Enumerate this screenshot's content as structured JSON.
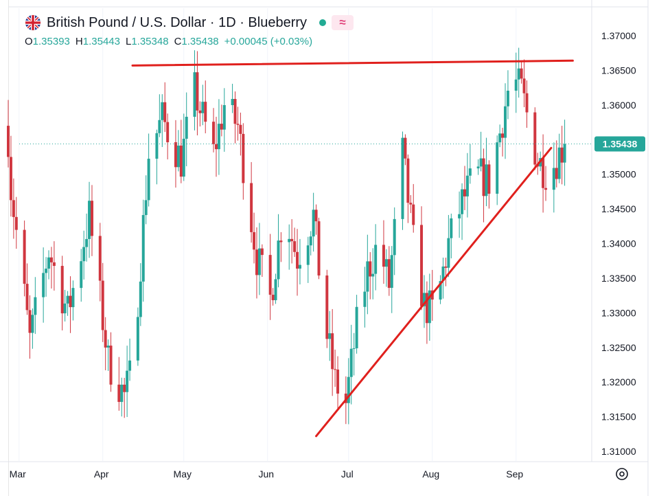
{
  "header": {
    "title": "British Pound / U.S. Dollar · 1D · Blueberry",
    "icons": [
      "uk-us-flag-icon",
      "status-dot-icon",
      "wave-icon"
    ],
    "wave_glyph": "≈"
  },
  "ohlc": {
    "o_label": "O",
    "o_value": "1.35393",
    "h_label": "H",
    "h_value": "1.35443",
    "l_label": "L",
    "l_value": "1.35348",
    "c_label": "C",
    "c_value": "1.35438",
    "change": "+0.00045 (+0.03%)"
  },
  "colors": {
    "up": "#26a69a",
    "down": "#d0363f",
    "trendline": "#e0201d",
    "price_tag": "#26a69a"
  },
  "chart_data": {
    "type": "candlestick",
    "ylim": [
      1.31,
      1.37
    ],
    "y_ticks": [
      "1.37000",
      "1.36500",
      "1.36000",
      "1.35500",
      "1.35000",
      "1.34500",
      "1.34000",
      "1.33500",
      "1.33000",
      "1.32500",
      "1.32000",
      "1.31500",
      "1.31000"
    ],
    "x_ticks": [
      "Mar",
      "Apr",
      "May",
      "Jun",
      "Jul",
      "Aug",
      "Sep"
    ],
    "x_tick_dates": [
      "2025-03-01",
      "2025-04-01",
      "2025-05-01",
      "2025-06-01",
      "2025-07-01",
      "2025-08-01",
      "2025-09-01"
    ],
    "x_range": [
      "2025-02-25",
      "2025-09-28"
    ],
    "last_price": "1.35438",
    "trendlines": [
      {
        "name": "resistance",
        "points": [
          [
            "2025-04-12",
            1.3657
          ],
          [
            "2025-09-22",
            1.3664
          ]
        ]
      },
      {
        "name": "support",
        "points": [
          [
            "2025-06-19",
            1.3122
          ],
          [
            "2025-09-14",
            1.3538
          ]
        ]
      }
    ],
    "anchors": [
      [
        "2025-02-25",
        1.3555
      ],
      [
        "2025-02-26",
        1.348
      ],
      [
        "2025-03-05",
        1.326
      ],
      [
        "2025-03-12",
        1.339
      ],
      [
        "2025-03-19",
        1.33
      ],
      [
        "2025-03-27",
        1.344
      ],
      [
        "2025-04-03",
        1.323
      ],
      [
        "2025-04-09",
        1.318
      ],
      [
        "2025-04-12",
        1.322
      ],
      [
        "2025-04-18",
        1.353
      ],
      [
        "2025-04-23",
        1.358
      ],
      [
        "2025-04-30",
        1.352
      ],
      [
        "2025-05-05",
        1.362
      ],
      [
        "2025-05-12",
        1.353
      ],
      [
        "2025-05-16",
        1.36
      ],
      [
        "2025-05-21",
        1.357
      ],
      [
        "2025-05-28",
        1.338
      ],
      [
        "2025-06-02",
        1.332
      ],
      [
        "2025-06-07",
        1.345
      ],
      [
        "2025-06-12",
        1.338
      ],
      [
        "2025-06-18",
        1.344
      ],
      [
        "2025-06-22",
        1.329
      ],
      [
        "2025-06-26",
        1.32
      ],
      [
        "2025-06-30",
        1.317
      ],
      [
        "2025-07-04",
        1.328
      ],
      [
        "2025-07-08",
        1.336
      ],
      [
        "2025-07-12",
        1.34
      ],
      [
        "2025-07-16",
        1.334
      ],
      [
        "2025-07-21",
        1.353
      ],
      [
        "2025-07-25",
        1.34
      ],
      [
        "2025-07-29",
        1.331
      ],
      [
        "2025-08-02",
        1.33
      ],
      [
        "2025-08-07",
        1.34
      ],
      [
        "2025-08-12",
        1.346
      ],
      [
        "2025-08-17",
        1.35
      ],
      [
        "2025-08-22",
        1.349
      ],
      [
        "2025-08-26",
        1.356
      ],
      [
        "2025-08-30",
        1.364
      ],
      [
        "2025-09-03",
        1.362
      ],
      [
        "2025-09-06",
        1.357
      ],
      [
        "2025-09-09",
        1.352
      ],
      [
        "2025-09-13",
        1.35
      ],
      [
        "2025-09-17",
        1.353
      ],
      [
        "2025-09-19",
        1.3543
      ]
    ]
  }
}
